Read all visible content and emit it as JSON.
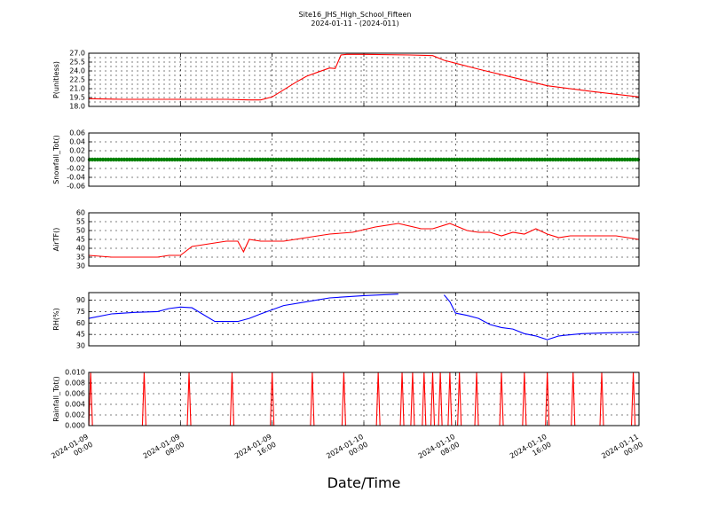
{
  "figure": {
    "title": "Site16_JHS_High_School_Fifteen",
    "subtitle": "2024-01-11 - (2024-011)",
    "xlabel": "Date/Time",
    "x_ticks": [
      {
        "x": "2024-01-09 00:00",
        "line1": "2024-01-09",
        "line2": "00:00"
      },
      {
        "x": "2024-01-09 08:00",
        "line1": "2024-01-09",
        "line2": "08:00"
      },
      {
        "x": "2024-01-09 16:00",
        "line1": "2024-01-09",
        "line2": "16:00"
      },
      {
        "x": "2024-01-10 00:00",
        "line1": "2024-01-10",
        "line2": "00:00"
      },
      {
        "x": "2024-01-10 08:00",
        "line1": "2024-01-10",
        "line2": "08:00"
      },
      {
        "x": "2024-01-10 16:00",
        "line1": "2024-01-10",
        "line2": "16:00"
      },
      {
        "x": "2024-01-11 00:00",
        "line1": "2024-01-11",
        "line2": "00:00"
      }
    ],
    "xlim": [
      "2024-01-09 00:00",
      "2024-01-11 00:00"
    ]
  },
  "colors": {
    "plin": "#ff0000",
    "snow": "#008000",
    "airtf": "#ff0000",
    "rh": "#0000ff",
    "rain": "#ff0000"
  },
  "chart_data": [
    {
      "type": "line",
      "ylabel": "P(unitless)",
      "ylim": [
        18.0,
        27.0
      ],
      "yticks": [
        "18.0",
        "19.5",
        "21.0",
        "22.5",
        "24.0",
        "25.5",
        "27.0"
      ],
      "yminor": [
        "18.75",
        "20.25",
        "21.75",
        "23.25",
        "24.75",
        "26.25"
      ],
      "grid": true,
      "series": [
        {
          "color": "#ff0000",
          "x": [
            "2024-01-09 00:00",
            "2024-01-09 03:00",
            "2024-01-09 06:00",
            "2024-01-09 09:00",
            "2024-01-09 12:00",
            "2024-01-09 14:00",
            "2024-01-09 15:00",
            "2024-01-09 16:00",
            "2024-01-09 17:00",
            "2024-01-09 18:00",
            "2024-01-09 19:00",
            "2024-01-09 20:00",
            "2024-01-09 21:00",
            "2024-01-09 21:30",
            "2024-01-09 22:00",
            "2024-01-09 22:30",
            "2024-01-10 00:00",
            "2024-01-10 04:00",
            "2024-01-10 06:00",
            "2024-01-10 07:00",
            "2024-01-10 08:00",
            "2024-01-10 10:00",
            "2024-01-10 13:00",
            "2024-01-10 16:00",
            "2024-01-10 20:00",
            "2024-01-11 00:00"
          ],
          "y": [
            19.3,
            19.2,
            19.2,
            19.2,
            19.2,
            19.1,
            19.1,
            19.6,
            20.8,
            22.0,
            23.1,
            23.8,
            24.5,
            24.4,
            26.7,
            26.8,
            26.8,
            26.7,
            26.6,
            25.8,
            25.3,
            24.3,
            22.9,
            21.5,
            20.5,
            19.6
          ]
        }
      ]
    },
    {
      "type": "scatter",
      "ylabel": "Snowfall_Tot()",
      "ylim": [
        -0.06,
        0.06
      ],
      "yticks": [
        "-0.06",
        "-0.04",
        "-0.02",
        "0.00",
        "0.02",
        "0.04",
        "0.06"
      ],
      "grid": true,
      "series": [
        {
          "color": "#008000",
          "x": [
            "2024-01-09 00:00",
            "2024-01-11 00:00"
          ],
          "y": [
            0.0,
            0.0
          ],
          "note_constant": true
        }
      ]
    },
    {
      "type": "line",
      "ylabel": "AirTF()",
      "ylim": [
        30,
        60
      ],
      "yticks": [
        "30",
        "35",
        "40",
        "45",
        "50",
        "55",
        "60"
      ],
      "grid": true,
      "series": [
        {
          "color": "#ff0000",
          "x": [
            "2024-01-09 00:00",
            "2024-01-09 02:00",
            "2024-01-09 04:00",
            "2024-01-09 06:00",
            "2024-01-09 07:00",
            "2024-01-09 08:00",
            "2024-01-09 09:00",
            "2024-01-09 10:00",
            "2024-01-09 11:00",
            "2024-01-09 12:00",
            "2024-01-09 13:00",
            "2024-01-09 13:30",
            "2024-01-09 14:00",
            "2024-01-09 15:00",
            "2024-01-09 17:00",
            "2024-01-09 19:00",
            "2024-01-09 21:00",
            "2024-01-09 23:00",
            "2024-01-10 01:00",
            "2024-01-10 03:00",
            "2024-01-10 05:00",
            "2024-01-10 06:00",
            "2024-01-10 06:30",
            "2024-01-10 07:30",
            "2024-01-10 09:00",
            "2024-01-10 10:00",
            "2024-01-10 11:00",
            "2024-01-10 12:00",
            "2024-01-10 13:00",
            "2024-01-10 14:00",
            "2024-01-10 15:00",
            "2024-01-10 16:00",
            "2024-01-10 17:00",
            "2024-01-10 18:00",
            "2024-01-10 20:00",
            "2024-01-10 22:00",
            "2024-01-11 00:00"
          ],
          "y": [
            36,
            35,
            35,
            35,
            36,
            36,
            41,
            42,
            43,
            44,
            44,
            38,
            45,
            44,
            44,
            46,
            48,
            49,
            52,
            54,
            51,
            51,
            52,
            54,
            50,
            49,
            49,
            47,
            49,
            48,
            51,
            48,
            46,
            47,
            47,
            47,
            45
          ]
        }
      ]
    },
    {
      "type": "line",
      "ylabel": "RH(%)",
      "ylim": [
        30,
        100
      ],
      "yticks": [
        "30",
        "45",
        "60",
        "75",
        "90"
      ],
      "grid": true,
      "series": [
        {
          "color": "#0000ff",
          "x": [
            "2024-01-09 00:00",
            "2024-01-09 02:00",
            "2024-01-09 04:00",
            "2024-01-09 06:00",
            "2024-01-09 07:00",
            "2024-01-09 08:00",
            "2024-01-09 09:00",
            "2024-01-09 11:00",
            "2024-01-09 12:00",
            "2024-01-09 13:00",
            "2024-01-09 14:00",
            "2024-01-09 15:00",
            "2024-01-09 17:00",
            "2024-01-09 19:00",
            "2024-01-09 21:00",
            "2024-01-10 00:00",
            "2024-01-10 03:00",
            "2024-01-10 07:00",
            "2024-01-10 07:30",
            "2024-01-10 08:00",
            "2024-01-10 09:00",
            "2024-01-10 10:00",
            "2024-01-10 11:00",
            "2024-01-10 12:00",
            "2024-01-10 13:00",
            "2024-01-10 14:00",
            "2024-01-10 15:00",
            "2024-01-10 16:00",
            "2024-01-10 17:00",
            "2024-01-10 19:00",
            "2024-01-10 21:00",
            "2024-01-11 00:00"
          ],
          "y": [
            66,
            72,
            74,
            75,
            79,
            81,
            80,
            62,
            62,
            62,
            66,
            72,
            83,
            88,
            93,
            96,
            98,
            97,
            88,
            73,
            70,
            66,
            58,
            54,
            52,
            46,
            43,
            38,
            43,
            46,
            47,
            48
          ],
          "gaps_after": [
            "2024-01-10 03:00"
          ]
        }
      ]
    },
    {
      "type": "bar",
      "ylabel": "Rainfall_Tot()",
      "ylim": [
        0.0,
        0.01
      ],
      "yticks": [
        "0.000",
        "0.002",
        "0.004",
        "0.006",
        "0.008",
        "0.010"
      ],
      "grid": true,
      "series": [
        {
          "color": "#ff0000",
          "x": [
            "2024-01-09 00:10",
            "2024-01-09 04:50",
            "2024-01-09 08:45",
            "2024-01-09 12:30",
            "2024-01-09 16:00",
            "2024-01-09 19:30",
            "2024-01-09 22:15",
            "2024-01-10 01:15",
            "2024-01-10 03:20",
            "2024-01-10 04:15",
            "2024-01-10 05:15",
            "2024-01-10 06:00",
            "2024-01-10 06:40",
            "2024-01-10 07:30",
            "2024-01-10 08:20",
            "2024-01-10 09:50",
            "2024-01-10 12:00",
            "2024-01-10 14:00",
            "2024-01-10 16:00",
            "2024-01-10 18:15",
            "2024-01-10 20:45",
            "2024-01-10 23:30"
          ],
          "y": [
            0.01,
            0.01,
            0.01,
            0.01,
            0.01,
            0.01,
            0.01,
            0.01,
            0.01,
            0.01,
            0.01,
            0.01,
            0.01,
            0.01,
            0.01,
            0.01,
            0.01,
            0.01,
            0.01,
            0.01,
            0.01,
            0.01
          ]
        }
      ]
    }
  ]
}
